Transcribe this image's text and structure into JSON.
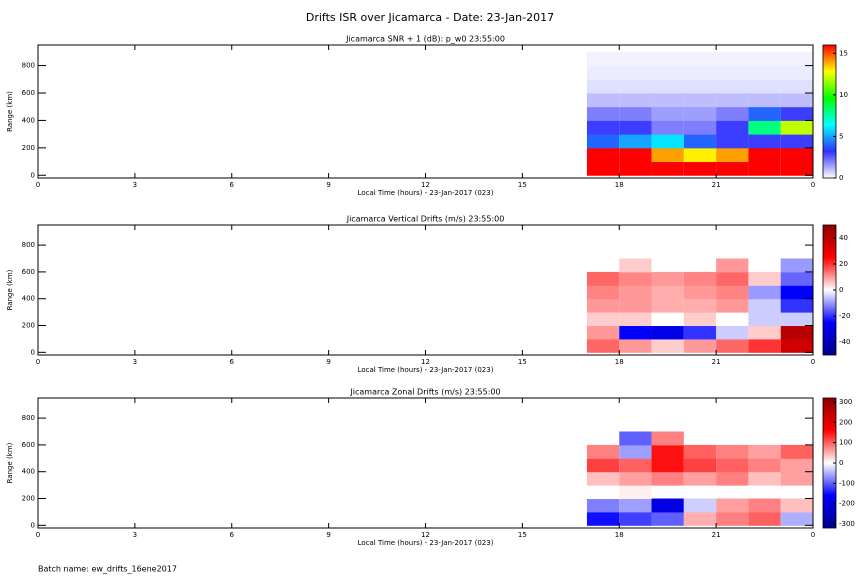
{
  "title": "Drifts ISR over Jicamarca - Date: 23-Jan-2017",
  "footer": "Batch name: ew_drifts_16ene2017",
  "chart_data": [
    {
      "type": "heatmap",
      "title": "Jicamarca SNR + 1 (dB): p_w0 23:55:00",
      "xlabel": "Local Time (hours) - 23-Jan-2017 (023)",
      "ylabel": "Range (km)",
      "xlim": [
        0,
        24
      ],
      "xticks": [
        0,
        3,
        6,
        9,
        12,
        15,
        18,
        21,
        {
          "value": 24,
          "label": "0"
        }
      ],
      "ylim": [
        -20,
        950
      ],
      "yticks": [
        0,
        200,
        400,
        600,
        800
      ],
      "xbins": [
        17,
        18,
        19,
        20,
        21,
        22,
        23,
        24
      ],
      "ybins": [
        0,
        100,
        200,
        300,
        400,
        500,
        600,
        700,
        800,
        900
      ],
      "values": [
        [
          16,
          16,
          16,
          16,
          16,
          16,
          16
        ],
        [
          16,
          16,
          14,
          13,
          14,
          16,
          16
        ],
        [
          4,
          5,
          6,
          4,
          3,
          3,
          3
        ],
        [
          3,
          3,
          2,
          2,
          3,
          8,
          12
        ],
        [
          2,
          2,
          1.5,
          1.5,
          2,
          4,
          3
        ],
        [
          1,
          1,
          1,
          1,
          1,
          1,
          1
        ],
        [
          0.5,
          0.5,
          0.5,
          0.5,
          0.5,
          0.5,
          0.5
        ],
        [
          0.3,
          0.3,
          0.3,
          0.3,
          0.3,
          0.3,
          0.3
        ],
        [
          0.2,
          0.2,
          0.2,
          0.2,
          0.2,
          0.2,
          0.2
        ]
      ],
      "clim": [
        0,
        16
      ],
      "cticks": [
        0,
        5,
        10,
        15
      ],
      "colormap": [
        "#ffffff",
        "#3030ff",
        "#00ffff",
        "#00ff00",
        "#ffff00",
        "#ff0000"
      ]
    },
    {
      "type": "heatmap",
      "title": "Jicamarca Vertical Drifts (m/s) 23:55:00",
      "xlabel": "Local Time (hours) - 23-Jan-2017 (023)",
      "ylabel": "Range (km)",
      "xlim": [
        0,
        24
      ],
      "xticks": [
        0,
        3,
        6,
        9,
        12,
        15,
        18,
        21,
        {
          "value": 24,
          "label": "0"
        }
      ],
      "ylim": [
        -20,
        950
      ],
      "yticks": [
        0,
        200,
        400,
        600,
        800
      ],
      "xbins": [
        17,
        18,
        19,
        20,
        21,
        22,
        23,
        24
      ],
      "ybins": [
        0,
        100,
        200,
        300,
        400,
        500,
        600,
        700,
        800,
        900
      ],
      "values": [
        [
          15,
          10,
          5,
          10,
          15,
          20,
          35
        ],
        [
          10,
          -25,
          -30,
          -20,
          -5,
          5,
          40
        ],
        [
          5,
          5,
          0,
          5,
          0,
          -5,
          -5
        ],
        [
          10,
          10,
          8,
          8,
          10,
          -5,
          -20
        ],
        [
          12,
          10,
          8,
          10,
          12,
          -10,
          -25
        ],
        [
          15,
          12,
          10,
          12,
          15,
          5,
          -15
        ],
        [
          null,
          5,
          null,
          null,
          10,
          null,
          -10
        ],
        [
          null,
          null,
          null,
          null,
          null,
          null,
          null
        ],
        [
          null,
          null,
          null,
          null,
          null,
          null,
          null
        ]
      ],
      "clim": [
        -50,
        50
      ],
      "cticks": [
        -40,
        -20,
        0,
        20,
        40
      ],
      "colormap": [
        "#00008b",
        "#0000ff",
        "#ffffff",
        "#ff0000",
        "#8b0000"
      ]
    },
    {
      "type": "heatmap",
      "title": "Jicamarca Zonal Drifts (m/s) 23:55:00",
      "xlabel": "Local Time (hours) - 23-Jan-2017 (023)",
      "ylabel": "Range (km)",
      "xlim": [
        0,
        24
      ],
      "xticks": [
        0,
        3,
        6,
        9,
        12,
        15,
        18,
        21,
        {
          "value": 24,
          "label": "0"
        }
      ],
      "ylim": [
        -20,
        950
      ],
      "yticks": [
        0,
        200,
        400,
        600,
        800
      ],
      "xbins": [
        17,
        18,
        19,
        20,
        21,
        22,
        23,
        24
      ],
      "ybins": [
        0,
        100,
        200,
        300,
        400,
        500,
        600,
        700,
        800,
        900
      ],
      "values": [
        [
          -150,
          -120,
          -100,
          50,
          80,
          100,
          -50
        ],
        [
          -80,
          -60,
          -200,
          -30,
          60,
          80,
          40
        ],
        [
          0,
          10,
          null,
          null,
          null,
          null,
          null
        ],
        [
          40,
          60,
          80,
          60,
          80,
          40,
          60
        ],
        [
          120,
          100,
          150,
          120,
          100,
          80,
          60
        ],
        [
          80,
          -60,
          150,
          100,
          80,
          60,
          100
        ],
        [
          null,
          -100,
          80,
          null,
          null,
          null,
          null
        ],
        [
          null,
          null,
          null,
          null,
          null,
          null,
          null
        ],
        [
          null,
          null,
          null,
          null,
          null,
          null,
          null
        ]
      ],
      "clim": [
        -320,
        320
      ],
      "cticks": [
        -300,
        -200,
        -100,
        0,
        100,
        200,
        300
      ],
      "colormap": [
        "#00008b",
        "#0000ff",
        "#ffffff",
        "#ff0000",
        "#8b0000"
      ]
    }
  ]
}
